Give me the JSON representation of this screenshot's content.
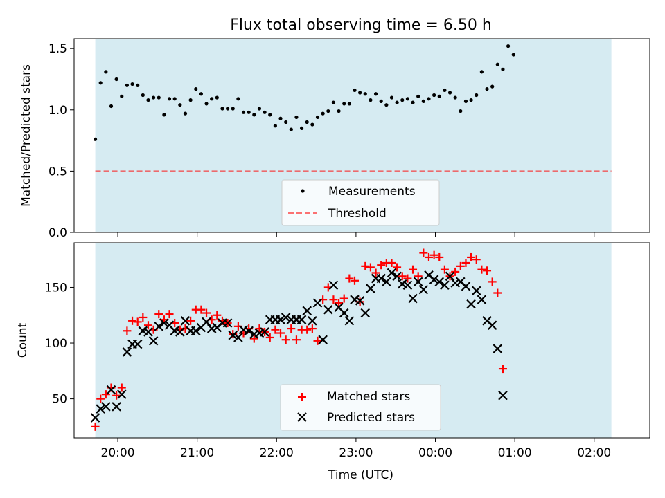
{
  "colors": {
    "span_fill": "#add8e6",
    "measurement": "#000000",
    "threshold": "#ff0000",
    "matched": "#ff0000",
    "predicted": "#000000"
  },
  "chart_data": [
    {
      "type": "scatter",
      "title": "Flux total observing time = 6.50 h",
      "xlabel": "",
      "ylabel": "Matched/Predicted stars",
      "ylim": [
        0,
        1.58
      ],
      "yticks": [
        "0.0",
        "0.5",
        "1.0",
        "1.5"
      ],
      "x_range": [
        "19:27",
        "02:42"
      ],
      "observing_span": [
        "19:43",
        "02:13"
      ],
      "grid": false,
      "legend_position": "lower-center",
      "threshold": {
        "name": "Threshold",
        "value": 0.5,
        "style": "dashed"
      },
      "series": [
        {
          "name": "Measurements",
          "marker": "dot",
          "points": [
            [
              "19:43",
              0.76
            ],
            [
              "19:47",
              1.22
            ],
            [
              "19:51",
              1.31
            ],
            [
              "19:55",
              1.03
            ],
            [
              "19:59",
              1.25
            ],
            [
              "20:03",
              1.11
            ],
            [
              "20:07",
              1.2
            ],
            [
              "20:11",
              1.21
            ],
            [
              "20:15",
              1.2
            ],
            [
              "20:19",
              1.12
            ],
            [
              "20:23",
              1.08
            ],
            [
              "20:27",
              1.1
            ],
            [
              "20:31",
              1.1
            ],
            [
              "20:35",
              0.96
            ],
            [
              "20:39",
              1.09
            ],
            [
              "20:43",
              1.09
            ],
            [
              "20:47",
              1.04
            ],
            [
              "20:51",
              0.97
            ],
            [
              "20:55",
              1.08
            ],
            [
              "20:59",
              1.17
            ],
            [
              "21:03",
              1.13
            ],
            [
              "21:07",
              1.05
            ],
            [
              "21:11",
              1.09
            ],
            [
              "21:15",
              1.1
            ],
            [
              "21:19",
              1.01
            ],
            [
              "21:23",
              1.01
            ],
            [
              "21:27",
              1.01
            ],
            [
              "21:31",
              1.09
            ],
            [
              "21:35",
              0.98
            ],
            [
              "21:39",
              0.98
            ],
            [
              "21:43",
              0.96
            ],
            [
              "21:47",
              1.01
            ],
            [
              "21:51",
              0.98
            ],
            [
              "21:55",
              0.96
            ],
            [
              "21:59",
              0.87
            ],
            [
              "22:03",
              0.93
            ],
            [
              "22:07",
              0.9
            ],
            [
              "22:11",
              0.84
            ],
            [
              "22:15",
              0.94
            ],
            [
              "22:19",
              0.85
            ],
            [
              "22:23",
              0.9
            ],
            [
              "22:27",
              0.88
            ],
            [
              "22:31",
              0.94
            ],
            [
              "22:35",
              0.97
            ],
            [
              "22:39",
              0.99
            ],
            [
              "22:43",
              1.06
            ],
            [
              "22:47",
              0.99
            ],
            [
              "22:51",
              1.05
            ],
            [
              "22:55",
              1.05
            ],
            [
              "22:59",
              1.16
            ],
            [
              "23:03",
              1.14
            ],
            [
              "23:07",
              1.13
            ],
            [
              "23:11",
              1.08
            ],
            [
              "23:15",
              1.13
            ],
            [
              "23:19",
              1.07
            ],
            [
              "23:23",
              1.04
            ],
            [
              "23:27",
              1.1
            ],
            [
              "23:31",
              1.06
            ],
            [
              "23:35",
              1.08
            ],
            [
              "23:39",
              1.09
            ],
            [
              "23:43",
              1.06
            ],
            [
              "23:47",
              1.11
            ],
            [
              "23:51",
              1.07
            ],
            [
              "23:55",
              1.09
            ],
            [
              "23:59",
              1.12
            ],
            [
              "00:03",
              1.11
            ],
            [
              "00:07",
              1.16
            ],
            [
              "00:11",
              1.14
            ],
            [
              "00:15",
              1.1
            ],
            [
              "00:19",
              0.99
            ],
            [
              "00:23",
              1.07
            ],
            [
              "00:27",
              1.08
            ],
            [
              "00:31",
              1.12
            ],
            [
              "00:35",
              1.31
            ],
            [
              "00:39",
              1.17
            ],
            [
              "00:43",
              1.19
            ],
            [
              "00:47",
              1.37
            ],
            [
              "00:51",
              1.33
            ],
            [
              "00:55",
              1.52
            ],
            [
              "00:59",
              1.45
            ]
          ]
        }
      ]
    },
    {
      "type": "scatter",
      "title": "",
      "xlabel": "Time (UTC)",
      "ylabel": "Count",
      "ylim": [
        15,
        190
      ],
      "yticks": [
        "50",
        "100",
        "150"
      ],
      "xticks": [
        "20:00",
        "21:00",
        "22:00",
        "23:00",
        "00:00",
        "01:00",
        "02:00"
      ],
      "x_range": [
        "19:27",
        "02:42"
      ],
      "observing_span": [
        "19:43",
        "02:13"
      ],
      "grid": false,
      "legend_position": "lower-center",
      "series": [
        {
          "name": "Matched stars",
          "marker": "plus",
          "points": [
            [
              "19:43",
              25
            ],
            [
              "19:47",
              50
            ],
            [
              "19:51",
              54
            ],
            [
              "19:55",
              60
            ],
            [
              "19:59",
              53
            ],
            [
              "20:03",
              60
            ],
            [
              "20:07",
              111
            ],
            [
              "20:11",
              120
            ],
            [
              "20:15",
              119
            ],
            [
              "20:19",
              123
            ],
            [
              "20:23",
              116
            ],
            [
              "20:27",
              112
            ],
            [
              "20:31",
              126
            ],
            [
              "20:35",
              121
            ],
            [
              "20:39",
              126
            ],
            [
              "20:43",
              118
            ],
            [
              "20:47",
              112
            ],
            [
              "20:51",
              113
            ],
            [
              "20:55",
              120
            ],
            [
              "20:59",
              130
            ],
            [
              "21:03",
              130
            ],
            [
              "21:07",
              127
            ],
            [
              "21:11",
              121
            ],
            [
              "21:15",
              125
            ],
            [
              "21:19",
              120
            ],
            [
              "21:23",
              118
            ],
            [
              "21:27",
              108
            ],
            [
              "21:31",
              115
            ],
            [
              "21:35",
              109
            ],
            [
              "21:39",
              113
            ],
            [
              "21:43",
              104
            ],
            [
              "21:47",
              113
            ],
            [
              "21:51",
              110
            ],
            [
              "21:55",
              105
            ],
            [
              "21:59",
              112
            ],
            [
              "22:03",
              109
            ],
            [
              "22:07",
              103
            ],
            [
              "22:11",
              113
            ],
            [
              "22:15",
              103
            ],
            [
              "22:19",
              112
            ],
            [
              "22:23",
              112
            ],
            [
              "22:27",
              113
            ],
            [
              "22:31",
              102
            ],
            [
              "22:35",
              139
            ],
            [
              "22:39",
              150
            ],
            [
              "22:43",
              139
            ],
            [
              "22:47",
              136
            ],
            [
              "22:51",
              140
            ],
            [
              "22:55",
              158
            ],
            [
              "22:59",
              156
            ],
            [
              "23:03",
              137
            ],
            [
              "23:07",
              169
            ],
            [
              "23:11",
              168
            ],
            [
              "23:15",
              163
            ],
            [
              "23:19",
              170
            ],
            [
              "23:23",
              172
            ],
            [
              "23:27",
              172
            ],
            [
              "23:31",
              168
            ],
            [
              "23:35",
              160
            ],
            [
              "23:39",
              158
            ],
            [
              "23:43",
              166
            ],
            [
              "23:47",
              160
            ],
            [
              "23:51",
              181
            ],
            [
              "23:55",
              177
            ],
            [
              "23:59",
              179
            ],
            [
              "00:03",
              177
            ],
            [
              "00:07",
              166
            ],
            [
              "00:11",
              160
            ],
            [
              "00:15",
              164
            ],
            [
              "00:19",
              169
            ],
            [
              "00:23",
              172
            ],
            [
              "00:27",
              177
            ],
            [
              "00:31",
              175
            ],
            [
              "00:35",
              166
            ],
            [
              "00:39",
              165
            ],
            [
              "00:43",
              155
            ],
            [
              "00:47",
              145
            ],
            [
              "00:51",
              77
            ]
          ]
        },
        {
          "name": "Predicted stars",
          "marker": "x",
          "points": [
            [
              "19:43",
              33
            ],
            [
              "19:47",
              41
            ],
            [
              "19:51",
              43
            ],
            [
              "19:55",
              58
            ],
            [
              "19:59",
              43
            ],
            [
              "20:03",
              54
            ],
            [
              "20:07",
              92
            ],
            [
              "20:11",
              99
            ],
            [
              "20:15",
              99
            ],
            [
              "20:19",
              111
            ],
            [
              "20:23",
              110
            ],
            [
              "20:27",
              102
            ],
            [
              "20:31",
              115
            ],
            [
              "20:35",
              118
            ],
            [
              "20:39",
              116
            ],
            [
              "20:43",
              111
            ],
            [
              "20:47",
              110
            ],
            [
              "20:51",
              120
            ],
            [
              "20:55",
              111
            ],
            [
              "20:59",
              111
            ],
            [
              "21:03",
              114
            ],
            [
              "21:07",
              119
            ],
            [
              "21:11",
              113
            ],
            [
              "21:15",
              114
            ],
            [
              "21:19",
              118
            ],
            [
              "21:23",
              118
            ],
            [
              "21:27",
              107
            ],
            [
              "21:31",
              105
            ],
            [
              "21:35",
              112
            ],
            [
              "21:39",
              111
            ],
            [
              "21:43",
              108
            ],
            [
              "21:47",
              109
            ],
            [
              "21:51",
              110
            ],
            [
              "21:55",
              121
            ],
            [
              "21:59",
              121
            ],
            [
              "22:03",
              121
            ],
            [
              "22:07",
              123
            ],
            [
              "22:11",
              121
            ],
            [
              "22:15",
              121
            ],
            [
              "22:19",
              121
            ],
            [
              "22:23",
              129
            ],
            [
              "22:27",
              120
            ],
            [
              "22:31",
              136
            ],
            [
              "22:35",
              103
            ],
            [
              "22:39",
              130
            ],
            [
              "22:43",
              152
            ],
            [
              "22:47",
              132
            ],
            [
              "22:51",
              127
            ],
            [
              "22:55",
              120
            ],
            [
              "22:59",
              139
            ],
            [
              "23:03",
              138
            ],
            [
              "23:07",
              127
            ],
            [
              "23:11",
              149
            ],
            [
              "23:15",
              158
            ],
            [
              "23:19",
              158
            ],
            [
              "23:23",
              155
            ],
            [
              "23:27",
              163
            ],
            [
              "23:31",
              160
            ],
            [
              "23:35",
              153
            ],
            [
              "23:39",
              152
            ],
            [
              "23:43",
              140
            ],
            [
              "23:47",
              155
            ],
            [
              "23:51",
              148
            ],
            [
              "23:55",
              161
            ],
            [
              "23:59",
              157
            ],
            [
              "00:03",
              155
            ],
            [
              "00:07",
              152
            ],
            [
              "00:11",
              160
            ],
            [
              "00:15",
              154
            ],
            [
              "00:19",
              155
            ],
            [
              "00:23",
              151
            ],
            [
              "00:27",
              135
            ],
            [
              "00:31",
              147
            ],
            [
              "00:35",
              139
            ],
            [
              "00:39",
              120
            ],
            [
              "00:43",
              116
            ],
            [
              "00:47",
              95
            ],
            [
              "00:51",
              53
            ]
          ]
        }
      ]
    }
  ]
}
